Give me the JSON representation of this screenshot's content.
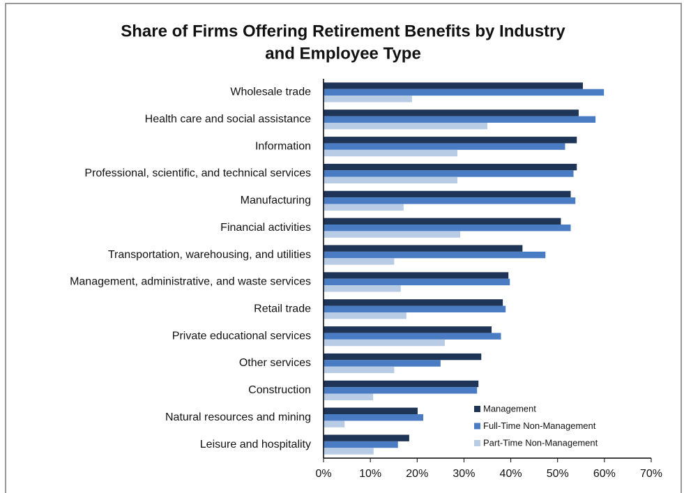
{
  "chart_data": {
    "type": "barh",
    "title": "Share of Firms Offering Retirement Benefits by Industry and Employee Type",
    "categories": [
      "Wholesale trade",
      "Health care and social assistance",
      "Information",
      "Professional, scientific, and technical services",
      "Manufacturing",
      "Financial activities",
      "Transportation, warehousing, and utilities",
      "Management, administrative, and waste services",
      "Retail trade",
      "Private educational services",
      "Other services",
      "Construction",
      "Natural resources and mining",
      "Leisure and hospitality"
    ],
    "series": [
      {
        "name": "Management",
        "color": "#1f3557",
        "values": [
          55.4,
          54.5,
          54.1,
          54.1,
          52.8,
          50.7,
          42.5,
          39.5,
          38.3,
          35.9,
          33.7,
          33.1,
          20.1,
          18.3
        ]
      },
      {
        "name": "Full-Time Non-Management",
        "color": "#4a7cc4",
        "values": [
          59.9,
          58.1,
          51.6,
          53.4,
          53.8,
          52.8,
          47.4,
          39.8,
          38.9,
          37.9,
          25.0,
          32.8,
          21.3,
          15.9
        ]
      },
      {
        "name": "Part-Time Non-Management",
        "color": "#b8cce6",
        "values": [
          18.9,
          35.0,
          28.6,
          28.6,
          17.1,
          29.2,
          15.1,
          16.5,
          17.7,
          25.9,
          15.1,
          10.6,
          4.5,
          10.7
        ]
      }
    ],
    "xlim": [
      0,
      70
    ],
    "xticks": [
      {
        "value": 0,
        "label": "0%"
      },
      {
        "value": 10,
        "label": "10%"
      },
      {
        "value": 20,
        "label": "20%"
      },
      {
        "value": 30,
        "label": "30%"
      },
      {
        "value": 40,
        "label": "40%"
      },
      {
        "value": 50,
        "label": "50%"
      },
      {
        "value": 60,
        "label": "60%"
      },
      {
        "value": 70,
        "label": "70%"
      }
    ],
    "legend": "lower right"
  }
}
